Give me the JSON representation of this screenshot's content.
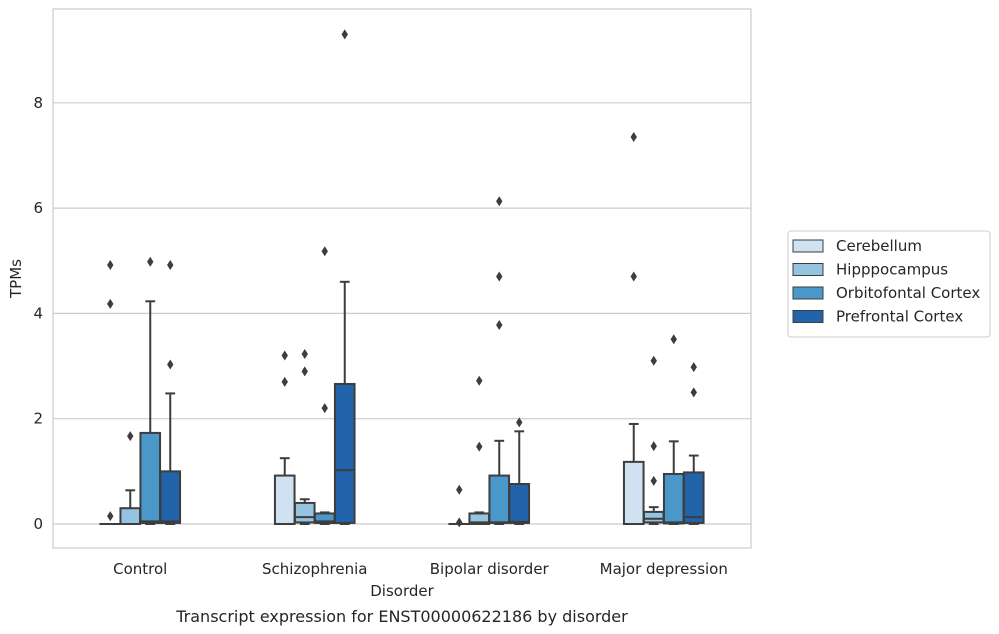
{
  "chart_data": {
    "type": "box",
    "title": "",
    "caption": "Transcript expression for ENST00000622186 by disorder",
    "xlabel": "Disorder",
    "ylabel": "TPMs",
    "ylim": [
      -0.45,
      9.75
    ],
    "yticks": [
      0,
      2,
      4,
      6,
      8
    ],
    "grid": true,
    "legend_position": "right",
    "categories": [
      "Control",
      "Schizophrenia",
      "Bipolar disorder",
      "Major depression"
    ],
    "series": [
      {
        "name": "Cerebellum",
        "color": "#d0e1f2",
        "boxes": [
          {
            "whisker_low": 0,
            "q1": 0,
            "median": 0,
            "q3": 0,
            "whisker_high": 0,
            "outliers": [
              0.15,
              4.18,
              4.92
            ]
          },
          {
            "whisker_low": 0,
            "q1": 0,
            "median": 0,
            "q3": 0.92,
            "whisker_high": 1.25,
            "outliers": [
              2.7,
              3.2
            ]
          },
          {
            "whisker_low": 0,
            "q1": 0,
            "median": 0,
            "q3": 0,
            "whisker_high": 0,
            "outliers": [
              0.03,
              0.65
            ]
          },
          {
            "whisker_low": 0,
            "q1": 0,
            "median": 0,
            "q3": 1.18,
            "whisker_high": 1.9,
            "outliers": [
              4.7,
              7.35
            ]
          }
        ]
      },
      {
        "name": "Hipppocampus",
        "color": "#94c4df",
        "boxes": [
          {
            "whisker_low": 0,
            "q1": 0,
            "median": 0,
            "q3": 0.3,
            "whisker_high": 0.64,
            "outliers": [
              1.67
            ]
          },
          {
            "whisker_low": 0,
            "q1": 0.03,
            "median": 0.13,
            "q3": 0.4,
            "whisker_high": 0.47,
            "outliers": [
              2.9,
              3.23
            ]
          },
          {
            "whisker_low": 0,
            "q1": 0,
            "median": 0.03,
            "q3": 0.2,
            "whisker_high": 0.22,
            "outliers": [
              1.47,
              2.72
            ]
          },
          {
            "whisker_low": 0,
            "q1": 0.03,
            "median": 0.1,
            "q3": 0.23,
            "whisker_high": 0.32,
            "outliers": [
              0.82,
              1.48,
              3.1
            ]
          }
        ]
      },
      {
        "name": "Orbitofontal Cortex",
        "color": "#4a98c9",
        "boxes": [
          {
            "whisker_low": 0,
            "q1": 0.02,
            "median": 0.05,
            "q3": 1.73,
            "whisker_high": 4.23,
            "outliers": [
              4.98
            ]
          },
          {
            "whisker_low": 0,
            "q1": 0.02,
            "median": 0.05,
            "q3": 0.2,
            "whisker_high": 0.22,
            "outliers": [
              2.2,
              5.18
            ]
          },
          {
            "whisker_low": 0,
            "q1": 0.02,
            "median": 0.03,
            "q3": 0.92,
            "whisker_high": 1.58,
            "outliers": [
              3.78,
              4.7,
              6.13
            ]
          },
          {
            "whisker_low": 0,
            "q1": 0.01,
            "median": 0.03,
            "q3": 0.95,
            "whisker_high": 1.57,
            "outliers": [
              3.51
            ]
          }
        ]
      },
      {
        "name": "Prefrontal Cortex",
        "color": "#2164ab",
        "boxes": [
          {
            "whisker_low": 0,
            "q1": 0.02,
            "median": 0.05,
            "q3": 1.0,
            "whisker_high": 2.48,
            "outliers": [
              3.03,
              4.92
            ]
          },
          {
            "whisker_low": 0,
            "q1": 0.02,
            "median": 1.02,
            "q3": 2.66,
            "whisker_high": 4.6,
            "outliers": [
              9.3
            ]
          },
          {
            "whisker_low": 0,
            "q1": 0.02,
            "median": 0.04,
            "q3": 0.76,
            "whisker_high": 1.76,
            "outliers": [
              1.93
            ]
          },
          {
            "whisker_low": 0,
            "q1": 0.02,
            "median": 0.13,
            "q3": 0.98,
            "whisker_high": 1.3,
            "outliers": [
              2.5,
              2.98
            ]
          }
        ]
      }
    ]
  }
}
